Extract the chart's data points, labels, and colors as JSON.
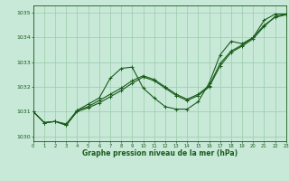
{
  "title": "Graphe pression niveau de la mer (hPa)",
  "background_color": "#c8e8d8",
  "grid_color": "#99ccaa",
  "line_color": "#1a5c1a",
  "xlim": [
    0,
    23
  ],
  "ylim": [
    1029.8,
    1035.3
  ],
  "yticks": [
    1030,
    1031,
    1032,
    1033,
    1034,
    1035
  ],
  "xticks": [
    0,
    1,
    2,
    3,
    4,
    5,
    6,
    7,
    8,
    9,
    10,
    11,
    12,
    13,
    14,
    15,
    16,
    17,
    18,
    19,
    20,
    21,
    22,
    23
  ],
  "series1_x": [
    0,
    1,
    2,
    3,
    4,
    5,
    6,
    7,
    8,
    9,
    10,
    11,
    12,
    13,
    14,
    15,
    16,
    17,
    18,
    19,
    20,
    21,
    22,
    23
  ],
  "series1_y": [
    1031.0,
    1030.55,
    1030.6,
    1030.45,
    1031.05,
    1031.3,
    1031.55,
    1032.35,
    1032.75,
    1032.8,
    1031.95,
    1031.55,
    1031.2,
    1031.1,
    1031.1,
    1031.4,
    1032.15,
    1033.3,
    1033.85,
    1033.75,
    1034.0,
    1034.7,
    1034.95,
    1034.95
  ],
  "series2_x": [
    0,
    1,
    2,
    3,
    4,
    5,
    6,
    7,
    8,
    9,
    10,
    11,
    12,
    13,
    14,
    15,
    16,
    17,
    18,
    19,
    20,
    21,
    22,
    23
  ],
  "series2_y": [
    1031.0,
    1030.55,
    1030.6,
    1030.45,
    1031.0,
    1031.15,
    1031.35,
    1031.6,
    1031.85,
    1032.15,
    1032.4,
    1032.25,
    1031.95,
    1031.65,
    1031.45,
    1031.65,
    1032.0,
    1032.85,
    1033.4,
    1033.65,
    1033.95,
    1034.45,
    1034.85,
    1034.95
  ],
  "series3_x": [
    0,
    1,
    2,
    3,
    4,
    5,
    6,
    7,
    8,
    9,
    10,
    11,
    12,
    13,
    14,
    15,
    16,
    17,
    18,
    19,
    20,
    21,
    22,
    23
  ],
  "series3_y": [
    1031.0,
    1030.55,
    1030.6,
    1030.5,
    1031.05,
    1031.2,
    1031.45,
    1031.7,
    1031.95,
    1032.25,
    1032.45,
    1032.3,
    1032.0,
    1031.7,
    1031.5,
    1031.7,
    1032.05,
    1032.95,
    1033.45,
    1033.7,
    1034.0,
    1034.5,
    1034.82,
    1034.92
  ]
}
